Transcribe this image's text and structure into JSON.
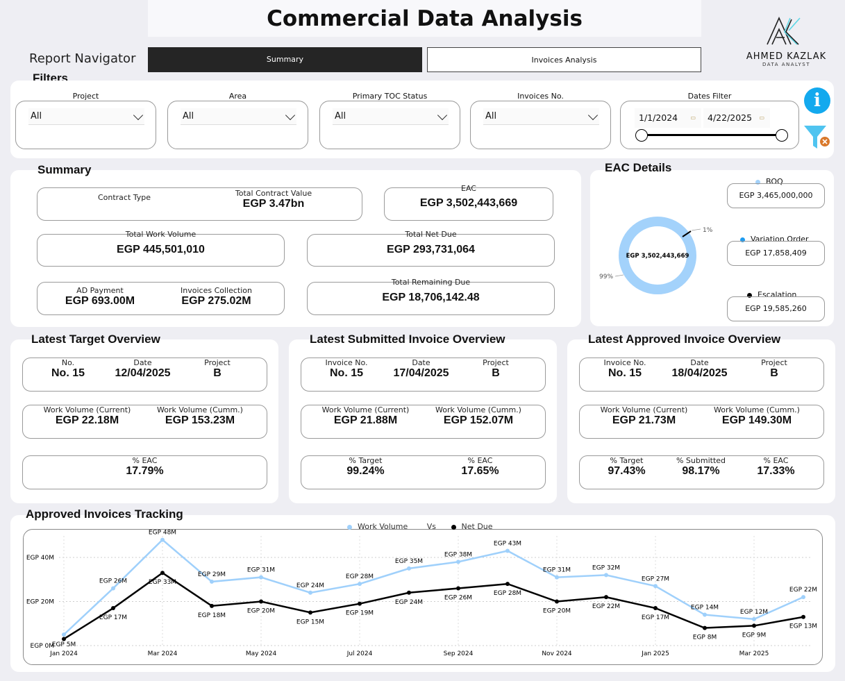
{
  "header": {
    "title": "Commercial Data Analysis",
    "nav_label": "Report Navigator",
    "tabs": [
      {
        "label": "Summary",
        "active": true
      },
      {
        "label": "Invoices Analysis",
        "active": false
      }
    ],
    "logo": {
      "name": "AHMED KAZLAK",
      "subtitle": "DATA ANALYST"
    }
  },
  "filters": {
    "title": "Filters",
    "items": [
      {
        "label": "Project",
        "value": "All"
      },
      {
        "label": "Area",
        "value": "All"
      },
      {
        "label": "Primary TOC Status",
        "value": "All"
      },
      {
        "label": "Invoices No.",
        "value": "All"
      }
    ],
    "dates": {
      "label": "Dates Filter",
      "start": "1/1/2024",
      "end": "4/22/2025"
    }
  },
  "summary": {
    "title": "Summary",
    "contract_type_label": "Contract Type",
    "total_contract_value_label": "Total Contract Value",
    "total_contract_value": "EGP 3.47bn",
    "eac_label": "EAC",
    "eac": "EGP 3,502,443,669",
    "total_work_volume_label": "Total Work Volume",
    "total_work_volume": "EGP 445,501,010",
    "total_net_due_label": "Total Net Due",
    "total_net_due": "EGP 293,731,064",
    "ad_payment_label": "AD Payment",
    "ad_payment": "EGP 693.00M",
    "invoices_collection_label": "Invoices Collection",
    "invoices_collection": "EGP 275.02M",
    "total_remaining_due_label": "Total Remaining Due",
    "total_remaining_due": "EGP 18,706,142.48"
  },
  "eac_details": {
    "title": "EAC Details",
    "center": "EGP 3,502,443,669",
    "pct_major": "99%",
    "pct_minor": "1%",
    "major_fraction": 0.99,
    "colors": {
      "boq": "#a3d2fb",
      "variation": "#1e9bf0",
      "escalation": "#000000"
    },
    "items": [
      {
        "label": "BOQ",
        "value": "EGP 3,465,000,000"
      },
      {
        "label": "Variation Order",
        "value": "EGP 17,858,409"
      },
      {
        "label": "Escalation",
        "value": "EGP 19,585,260"
      }
    ]
  },
  "target": {
    "title": "Latest Target Overview",
    "no_label": "No.",
    "no": "No. 15",
    "date_label": "Date",
    "date": "12/04/2025",
    "project_label": "Project",
    "project": "B",
    "wv_current_label": "Work Volume (Current)",
    "wv_current": "EGP 22.18M",
    "wv_cumm_label": "Work Volume (Cumm.)",
    "wv_cumm": "EGP 153.23M",
    "eac_label": "% EAC",
    "eac": "17.79%"
  },
  "submitted": {
    "title": "Latest Submitted Invoice Overview",
    "no_label": "Invoice No.",
    "no": "No. 15",
    "date_label": "Date",
    "date": "17/04/2025",
    "project_label": "Project",
    "project": "B",
    "wv_current_label": "Work Volume (Current)",
    "wv_current": "EGP 21.88M",
    "wv_cumm_label": "Work Volume (Cumm.)",
    "wv_cumm": "EGP 152.07M",
    "target_label": "% Target",
    "target": "99.24%",
    "eac_label": "% EAC",
    "eac": "17.65%"
  },
  "approved": {
    "title": "Latest Approved Invoice Overview",
    "no_label": "Invoice No.",
    "no": "No. 15",
    "date_label": "Date",
    "date": "18/04/2025",
    "project_label": "Project",
    "project": "B",
    "wv_current_label": "Work Volume (Current)",
    "wv_current": "EGP 21.73M",
    "wv_cumm_label": "Work Volume (Cumm.)",
    "wv_cumm": "EGP 149.30M",
    "target_label": "% Target",
    "target": "97.43%",
    "submitted_label": "% Submitted",
    "submitted": "98.17%",
    "eac_label": "% EAC",
    "eac": "17.33%"
  },
  "chart_data": {
    "type": "line",
    "title": "Approved Invoices Tracking",
    "legend": [
      "Work Volume",
      "Vs",
      "Net Due"
    ],
    "legend_position": "top-center",
    "x": [
      "Jan 2024",
      "Feb 2024",
      "Mar 2024",
      "Apr 2024",
      "May 2024",
      "Jun 2024",
      "Jul 2024",
      "Aug 2024",
      "Sep 2024",
      "Oct 2024",
      "Nov 2024",
      "Dec 2024",
      "Jan 2025",
      "Feb 2025",
      "Mar 2025",
      "Apr 2025"
    ],
    "x_tick_labels": [
      "Jan 2024",
      "Mar 2024",
      "May 2024",
      "Jul 2024",
      "Sep 2024",
      "Nov 2024",
      "Jan 2025",
      "Mar 2025"
    ],
    "y_tick_labels": [
      "EGP 0M",
      "EGP 20M",
      "EGP 40M"
    ],
    "ylim": [
      0,
      48
    ],
    "series": [
      {
        "name": "Work Volume",
        "color": "#9fd0fb",
        "values": [
          5,
          26,
          48,
          29,
          31,
          24,
          28,
          35,
          38,
          43,
          31,
          32,
          27,
          14,
          12,
          22
        ],
        "labels": [
          "EGP 5M",
          "EGP 26M",
          "EGP 48M",
          "EGP 29M",
          "EGP 31M",
          "EGP 24M",
          "EGP 28M",
          "EGP 35M",
          "EGP 38M",
          "EGP 43M",
          "EGP 31M",
          "EGP 32M",
          "EGP 27M",
          "EGP 14M",
          "EGP 12M",
          "EGP 22M"
        ]
      },
      {
        "name": "Net Due",
        "color": "#000000",
        "values": [
          3,
          17,
          33,
          18,
          20,
          15,
          19,
          24,
          26,
          28,
          20,
          22,
          17,
          8,
          9,
          13
        ],
        "labels": [
          "",
          "EGP 17M",
          "EGP 33M",
          "EGP 18M",
          "EGP 20M",
          "EGP 15M",
          "EGP 19M",
          "EGP 24M",
          "EGP 26M",
          "EGP 28M",
          "EGP 20M",
          "EGP 22M",
          "EGP 17M",
          "EGP 8M",
          "EGP 9M",
          "EGP 13M"
        ]
      }
    ]
  }
}
